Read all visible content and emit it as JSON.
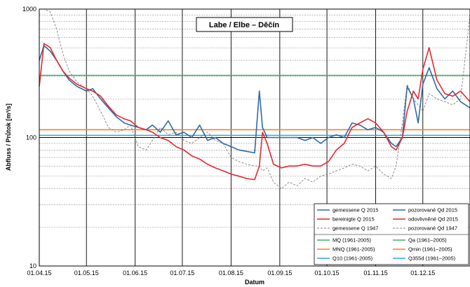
{
  "chart_data": {
    "type": "line",
    "title": "Labe / Elbe – Děčín",
    "xlabel": "Datum",
    "ylabel": "Abfluss / Průtok [m³/s]",
    "y_scale": "log",
    "ylim": [
      10,
      1000
    ],
    "xlim": [
      "2015-04-01",
      "2015-12-31"
    ],
    "x_ticks": [
      "01.04.15",
      "01.05.15",
      "01.06.15",
      "01.07.15",
      "01.08.15",
      "01.09.15",
      "01.10.15",
      "01.11.15",
      "01.12.15"
    ],
    "y_ticks": [
      "10",
      "100",
      "1000"
    ],
    "grid": "vertical lines at month starts, horizontal lines at log decades and sub-decades",
    "reference_lines": [
      {
        "name": "MQ (1961-2005)",
        "value": 305,
        "color": "#3cb371"
      },
      {
        "name": "MNQ (1961-2005)",
        "value": 115,
        "color": "#ff7f27"
      },
      {
        "name": "Q10 (1961-2005)",
        "value": 104,
        "color": "#29abe2"
      },
      {
        "name": "Qa  (1961–2005)",
        "value": 305,
        "color": "#3cb371"
      },
      {
        "name": "Qmin (1961–2005)",
        "value": 115,
        "color": "#ff7f27"
      },
      {
        "name": "Q355d (1961–2005)",
        "value": 104,
        "color": "#29abe2"
      }
    ],
    "series": [
      {
        "name": "gemessene Q 2015",
        "name_cz": "pozorované Qd 2015",
        "color": "#2f6aa5",
        "style": "solid",
        "x": [
          "2015-04-01",
          "2015-04-04",
          "2015-04-08",
          "2015-04-12",
          "2015-04-16",
          "2015-04-20",
          "2015-04-25",
          "2015-05-01",
          "2015-05-05",
          "2015-05-10",
          "2015-05-15",
          "2015-05-20",
          "2015-05-25",
          "2015-05-29",
          "2015-06-03",
          "2015-06-08",
          "2015-06-12",
          "2015-06-17",
          "2015-06-22",
          "2015-06-27",
          "2015-07-02",
          "2015-07-07",
          "2015-07-12",
          "2015-07-17",
          "2015-07-22",
          "2015-07-27",
          "2015-08-01",
          "2015-08-06",
          "2015-08-11",
          "2015-08-16",
          "2015-08-19",
          "2015-08-21",
          "2015-08-24",
          "2015-08-28",
          "2015-09-02",
          "2015-09-07",
          "2015-09-12",
          "2015-09-17",
          "2015-09-22",
          "2015-09-27",
          "2015-10-02",
          "2015-10-07",
          "2015-10-12",
          "2015-10-17",
          "2015-10-22",
          "2015-10-27",
          "2015-11-01",
          "2015-11-06",
          "2015-11-11",
          "2015-11-14",
          "2015-11-18",
          "2015-11-21",
          "2015-11-25",
          "2015-11-28",
          "2015-12-01",
          "2015-12-05",
          "2015-12-10",
          "2015-12-15",
          "2015-12-20",
          "2015-12-25",
          "2015-12-31"
        ],
        "values": [
          400,
          520,
          470,
          400,
          330,
          280,
          250,
          230,
          240,
          200,
          170,
          145,
          130,
          125,
          120,
          115,
          125,
          110,
          135,
          105,
          110,
          100,
          125,
          95,
          100,
          90,
          85,
          80,
          78,
          76,
          230,
          120,
          100,
          100,
          100,
          100,
          100,
          95,
          100,
          90,
          100,
          105,
          100,
          130,
          125,
          115,
          120,
          110,
          90,
          85,
          100,
          250,
          200,
          130,
          260,
          350,
          240,
          200,
          230,
          190,
          170
        ]
      },
      {
        "name": "bereinigte Q 2015",
        "name_cz": "odovlivněné Qd 2015",
        "color": "#e8272e",
        "style": "solid",
        "x": [
          "2015-04-01",
          "2015-04-04",
          "2015-04-08",
          "2015-04-12",
          "2015-04-16",
          "2015-04-20",
          "2015-04-25",
          "2015-05-01",
          "2015-05-05",
          "2015-05-10",
          "2015-05-15",
          "2015-05-20",
          "2015-05-25",
          "2015-05-29",
          "2015-06-03",
          "2015-06-08",
          "2015-06-12",
          "2015-06-17",
          "2015-06-22",
          "2015-06-27",
          "2015-07-02",
          "2015-07-07",
          "2015-07-12",
          "2015-07-17",
          "2015-07-22",
          "2015-07-27",
          "2015-08-01",
          "2015-08-06",
          "2015-08-11",
          "2015-08-16",
          "2015-08-19",
          "2015-08-21",
          "2015-08-24",
          "2015-08-28",
          "2015-09-02",
          "2015-09-07",
          "2015-09-12",
          "2015-09-17",
          "2015-09-22",
          "2015-09-27",
          "2015-10-02",
          "2015-10-07",
          "2015-10-12",
          "2015-10-17",
          "2015-10-22",
          "2015-10-27",
          "2015-11-01",
          "2015-11-06",
          "2015-11-11",
          "2015-11-14",
          "2015-11-18",
          "2015-11-21",
          "2015-11-25",
          "2015-11-28",
          "2015-12-01",
          "2015-12-05",
          "2015-12-10",
          "2015-12-15",
          "2015-12-20",
          "2015-12-25",
          "2015-12-31"
        ],
        "values": [
          250,
          540,
          500,
          400,
          330,
          290,
          260,
          240,
          230,
          210,
          175,
          150,
          140,
          135,
          120,
          115,
          110,
          100,
          95,
          85,
          80,
          72,
          68,
          62,
          58,
          55,
          52,
          50,
          48,
          47,
          60,
          110,
          90,
          62,
          58,
          60,
          60,
          62,
          60,
          60,
          65,
          80,
          90,
          120,
          130,
          140,
          130,
          110,
          85,
          80,
          100,
          160,
          230,
          200,
          340,
          500,
          280,
          220,
          210,
          230,
          190
        ]
      },
      {
        "name": "gemessene Q 1947",
        "name_cz": "pozorované Qd 1947",
        "color": "#808080",
        "style": "dashed",
        "x": [
          "2015-04-01",
          "2015-04-04",
          "2015-04-08",
          "2015-04-12",
          "2015-04-16",
          "2015-04-20",
          "2015-04-25",
          "2015-05-01",
          "2015-05-05",
          "2015-05-10",
          "2015-05-15",
          "2015-05-20",
          "2015-05-25",
          "2015-05-29",
          "2015-06-03",
          "2015-06-08",
          "2015-06-12",
          "2015-06-17",
          "2015-06-22",
          "2015-06-27",
          "2015-07-02",
          "2015-07-07",
          "2015-07-12",
          "2015-07-17",
          "2015-07-22",
          "2015-07-27",
          "2015-08-01",
          "2015-08-06",
          "2015-08-11",
          "2015-08-16",
          "2015-08-19",
          "2015-08-21",
          "2015-08-24",
          "2015-08-28",
          "2015-09-02",
          "2015-09-07",
          "2015-09-12",
          "2015-09-17",
          "2015-09-22",
          "2015-09-27",
          "2015-10-02",
          "2015-10-07",
          "2015-10-12",
          "2015-10-17",
          "2015-10-22",
          "2015-10-27",
          "2015-11-01",
          "2015-11-06",
          "2015-11-11",
          "2015-11-14",
          "2015-11-18",
          "2015-11-21",
          "2015-11-25",
          "2015-11-28",
          "2015-12-01",
          "2015-12-05",
          "2015-12-10",
          "2015-12-15",
          "2015-12-20",
          "2015-12-25",
          "2015-12-31"
        ],
        "values": [
          1000,
          1000,
          950,
          700,
          450,
          330,
          270,
          240,
          210,
          160,
          120,
          110,
          115,
          125,
          85,
          80,
          95,
          120,
          105,
          110,
          95,
          90,
          100,
          110,
          95,
          90,
          70,
          65,
          62,
          60,
          60,
          55,
          58,
          45,
          40,
          45,
          42,
          48,
          45,
          50,
          52,
          55,
          58,
          62,
          60,
          55,
          60,
          52,
          48,
          60,
          130,
          260,
          200,
          180,
          160,
          220,
          200,
          190,
          180,
          200,
          900
        ]
      }
    ]
  }
}
